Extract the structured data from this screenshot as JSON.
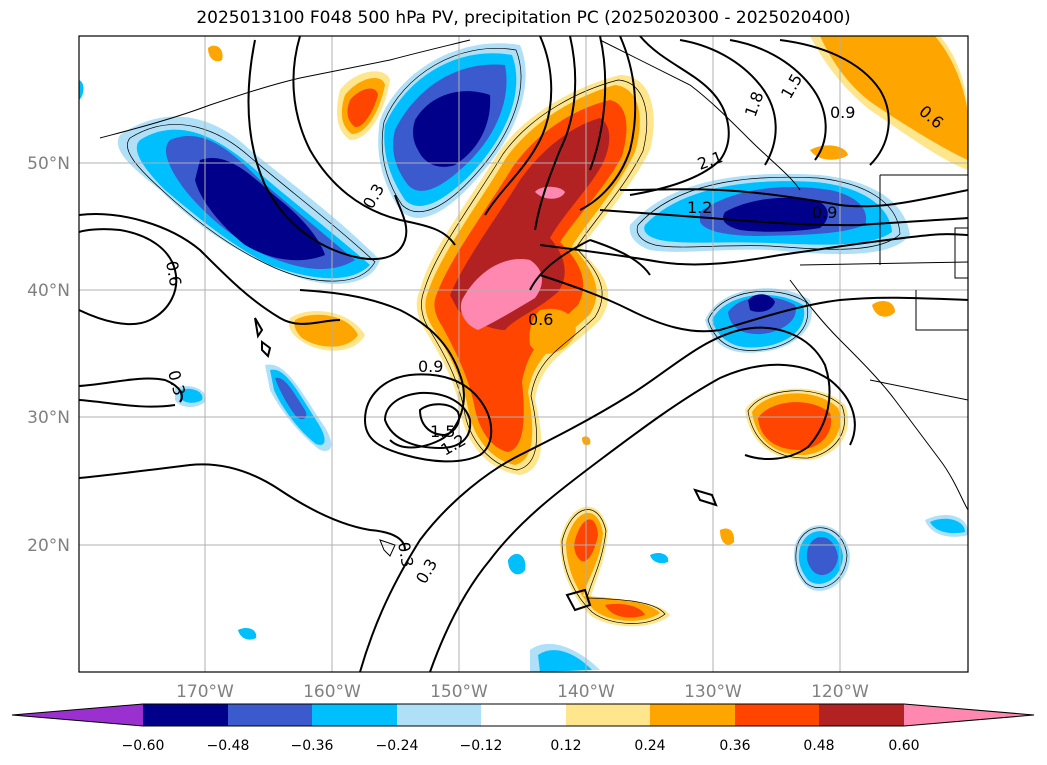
{
  "title": "2025013100 F048 500 hPa PV, precipitation PC (2025020300 - 2025020400)",
  "lon_labels": [
    "170°W",
    "160°W",
    "150°W",
    "140°W",
    "130°W",
    "120°W"
  ],
  "lat_labels": [
    "50°N",
    "40°N",
    "30°N",
    "20°N"
  ],
  "colorbar": {
    "tick_labels": [
      "−0.60",
      "−0.48",
      "−0.36",
      "−0.24",
      "−0.12",
      "0.12",
      "0.24",
      "0.36",
      "0.48",
      "0.60"
    ],
    "colors": {
      "under": "#9b30d0",
      "neg_060_048": "#00008b",
      "neg_048_036": "#3a5acd",
      "neg_036_024": "#00bfff",
      "neg_024_012": "#b0e0f8",
      "neutral": "#ffffff",
      "pos_012_024": "#ffe68c",
      "pos_024_036": "#ffa500",
      "pos_036_048": "#ff4500",
      "pos_048_060": "#b22222",
      "over": "#ff88b0"
    }
  },
  "contour_labels": [
    "0.3",
    "0.6",
    "0.9",
    "1.2",
    "1.5",
    "1.8",
    "2.1",
    "0.3",
    "0.6",
    "0.9",
    "1.2",
    "1.5",
    "0.6",
    "0.3",
    "0.3",
    "0.9",
    "0.6",
    "0.3"
  ]
}
